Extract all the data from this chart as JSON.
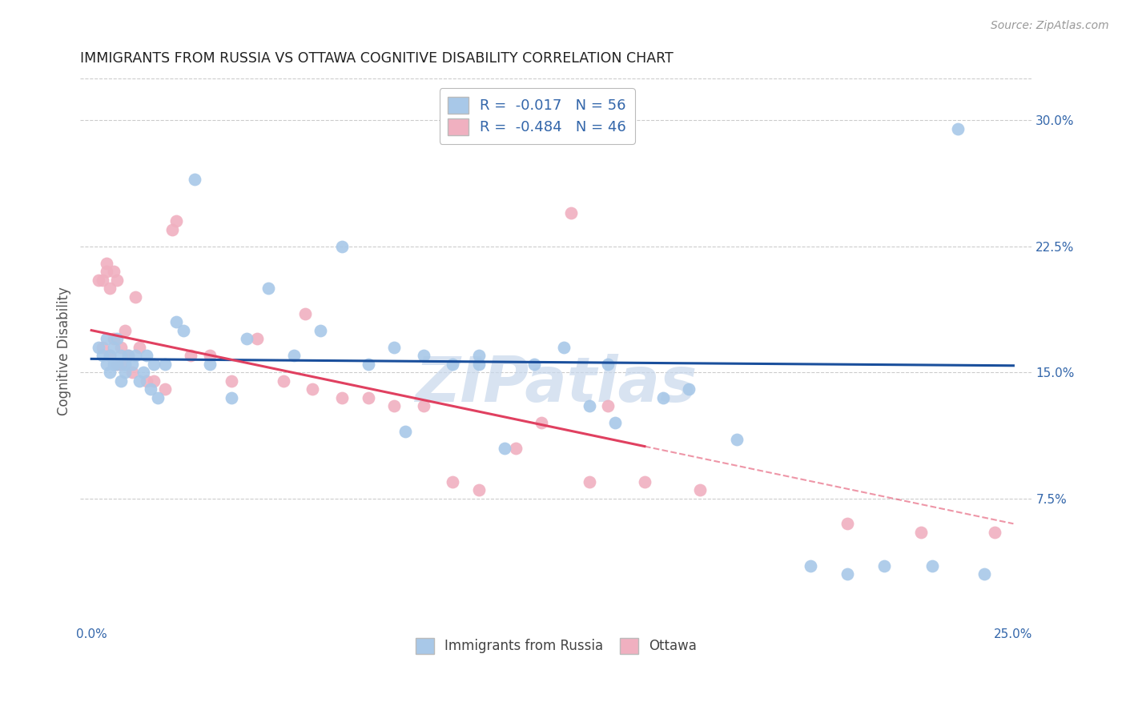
{
  "title": "IMMIGRANTS FROM RUSSIA VS OTTAWA COGNITIVE DISABILITY CORRELATION CHART",
  "source": "Source: ZipAtlas.com",
  "ylabel": "Cognitive Disability",
  "x_tick_labels": [
    "0.0%",
    "",
    "",
    "",
    "",
    "25.0%"
  ],
  "x_tick_vals": [
    0.0,
    5.0,
    10.0,
    15.0,
    20.0,
    25.0
  ],
  "y_tick_labels_right": [
    "7.5%",
    "15.0%",
    "22.5%",
    "30.0%"
  ],
  "y_tick_vals_right": [
    7.5,
    15.0,
    22.5,
    30.0
  ],
  "xlim": [
    -0.3,
    25.5
  ],
  "ylim": [
    0.0,
    32.5
  ],
  "legend_label_blue": "R =  -0.017   N = 56",
  "legend_label_pink": "R =  -0.484   N = 46",
  "legend_label_blue_series": "Immigrants from Russia",
  "legend_label_pink_series": "Ottawa",
  "blue_color": "#a8c8e8",
  "pink_color": "#f0b0c0",
  "blue_line_color": "#1a4f9c",
  "pink_line_color": "#e04060",
  "blue_scatter_x": [
    0.2,
    0.3,
    0.4,
    0.4,
    0.5,
    0.5,
    0.6,
    0.6,
    0.7,
    0.7,
    0.8,
    0.8,
    0.9,
    0.9,
    1.0,
    1.1,
    1.2,
    1.3,
    1.4,
    1.5,
    1.6,
    1.7,
    1.8,
    2.0,
    2.3,
    2.5,
    2.8,
    3.2,
    3.8,
    4.2,
    4.8,
    5.5,
    6.2,
    6.8,
    7.5,
    8.2,
    9.0,
    9.8,
    10.5,
    11.2,
    12.0,
    12.8,
    13.5,
    14.2,
    15.5,
    16.2,
    17.5,
    19.5,
    20.5,
    21.5,
    22.8,
    23.5,
    24.2,
    10.5,
    8.5,
    14.0
  ],
  "blue_scatter_y": [
    16.5,
    16.0,
    17.0,
    15.5,
    16.0,
    15.0,
    16.5,
    15.5,
    17.0,
    15.5,
    16.0,
    14.5,
    15.5,
    15.0,
    16.0,
    15.5,
    16.0,
    14.5,
    15.0,
    16.0,
    14.0,
    15.5,
    13.5,
    15.5,
    18.0,
    17.5,
    26.5,
    15.5,
    13.5,
    17.0,
    20.0,
    16.0,
    17.5,
    22.5,
    15.5,
    16.5,
    16.0,
    15.5,
    15.5,
    10.5,
    15.5,
    16.5,
    13.0,
    12.0,
    13.5,
    14.0,
    11.0,
    3.5,
    3.0,
    3.5,
    3.5,
    29.5,
    3.0,
    16.0,
    11.5,
    15.5
  ],
  "pink_scatter_x": [
    0.2,
    0.3,
    0.3,
    0.4,
    0.4,
    0.5,
    0.5,
    0.6,
    0.6,
    0.7,
    0.7,
    0.8,
    0.8,
    0.9,
    1.0,
    1.1,
    1.2,
    1.3,
    1.5,
    1.7,
    2.0,
    2.3,
    2.7,
    3.2,
    3.8,
    4.5,
    5.2,
    6.0,
    6.8,
    7.5,
    8.2,
    9.0,
    9.8,
    10.5,
    11.5,
    12.2,
    13.0,
    14.0,
    15.0,
    16.5,
    20.5,
    22.5,
    24.5,
    5.8,
    2.2,
    13.5
  ],
  "pink_scatter_y": [
    20.5,
    20.5,
    16.5,
    21.5,
    21.0,
    20.0,
    16.0,
    21.0,
    17.0,
    15.5,
    20.5,
    16.5,
    15.5,
    17.5,
    16.0,
    15.0,
    19.5,
    16.5,
    14.5,
    14.5,
    14.0,
    24.0,
    16.0,
    16.0,
    14.5,
    17.0,
    14.5,
    14.0,
    13.5,
    13.5,
    13.0,
    13.0,
    8.5,
    8.0,
    10.5,
    12.0,
    24.5,
    13.0,
    8.5,
    8.0,
    6.0,
    5.5,
    5.5,
    18.5,
    23.5,
    8.5
  ],
  "blue_line_start_x": 0.0,
  "blue_line_end_x": 25.0,
  "blue_line_start_y": 15.8,
  "blue_line_end_y": 15.4,
  "pink_line_start_x": 0.0,
  "pink_line_end_x": 25.0,
  "pink_line_start_y": 17.5,
  "pink_line_end_y": 6.0,
  "pink_solid_end_x": 15.0,
  "watermark_text": "ZIPatlas",
  "watermark_color": "#c8d8ec",
  "background_color": "#ffffff",
  "grid_color": "#cccccc",
  "title_fontsize": 12.5,
  "tick_fontsize": 11,
  "ylabel_fontsize": 12
}
